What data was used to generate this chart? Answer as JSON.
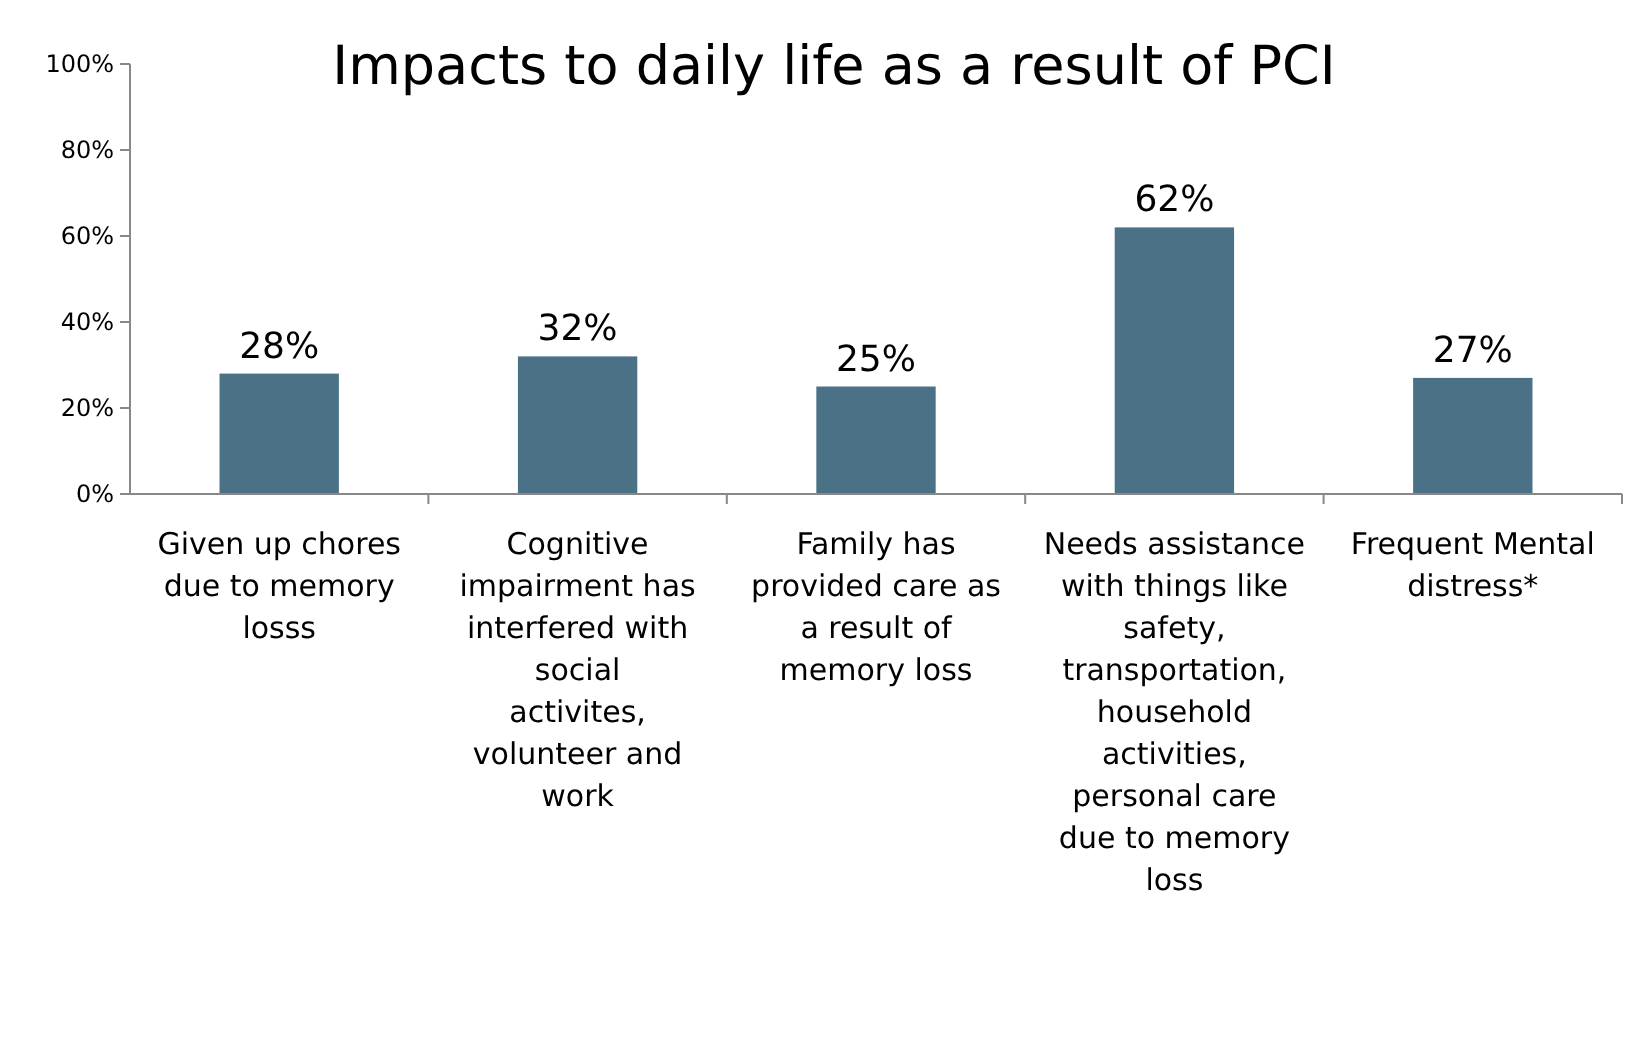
{
  "chart_data": {
    "type": "bar",
    "title": "Impacts to daily life as a result of PCI",
    "categories": [
      "Given up chores due to memory losss",
      "Cognitive impairment has interfered with social activites, volunteer and work",
      "Family has provided care as a result of memory loss",
      "Needs assistance with things like safety, transportation, household activities, personal care due to memory loss",
      "Frequent Mental distress*"
    ],
    "values": [
      28,
      32,
      25,
      62,
      27
    ],
    "value_labels": [
      "28%",
      "32%",
      "25%",
      "62%",
      "27%"
    ],
    "color": "#4a7186",
    "ylim": [
      0,
      100
    ],
    "yticks": [
      {
        "value": 0,
        "label": "0%"
      },
      {
        "value": 20,
        "label": "20%"
      },
      {
        "value": 40,
        "label": "40%"
      },
      {
        "value": 60,
        "label": "60%"
      },
      {
        "value": 80,
        "label": "80%"
      },
      {
        "value": 100,
        "label": "100%"
      }
    ],
    "grid": false
  }
}
